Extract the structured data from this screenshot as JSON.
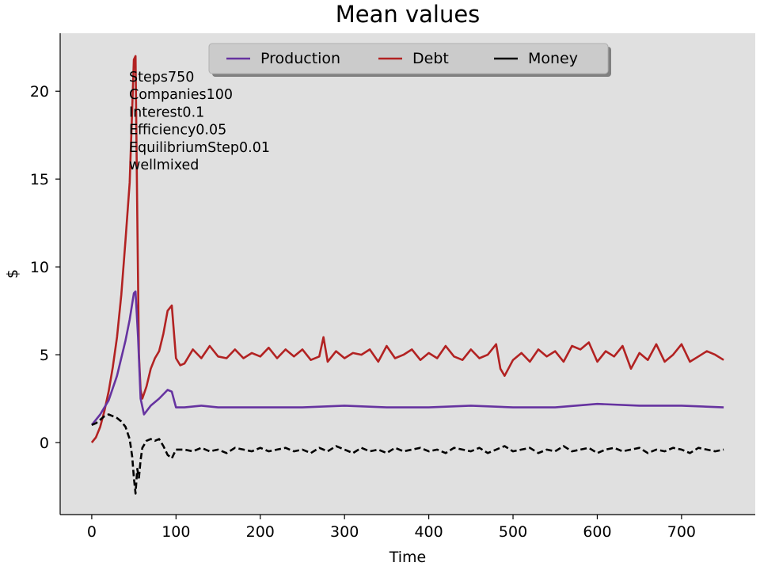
{
  "chart_data": {
    "type": "line",
    "title": "Mean values",
    "xlabel": "Time",
    "ylabel": "$",
    "xlim": [
      -37.5,
      787.5
    ],
    "ylim": [
      -4.1,
      23.3
    ],
    "xticks": [
      0,
      100,
      200,
      300,
      400,
      500,
      600,
      700
    ],
    "yticks": [
      0,
      5,
      10,
      15,
      20
    ],
    "grid": false,
    "background": "#e0e0e0",
    "legend": {
      "placement": "top-center",
      "columns": 3,
      "shadow": true
    },
    "annotation_lines": [
      "Steps750",
      "Companies100",
      "Interest0.1",
      "Efficiency0.05",
      "EquilibriumStep0.01",
      "wellmixed"
    ],
    "series": [
      {
        "name": "Production",
        "color": "#6633a0",
        "style": "solid",
        "x": [
          0,
          10,
          20,
          30,
          40,
          45,
          50,
          52,
          55,
          58,
          62,
          70,
          80,
          90,
          95,
          100,
          110,
          130,
          150,
          200,
          250,
          300,
          350,
          400,
          450,
          500,
          550,
          600,
          650,
          700,
          750
        ],
        "y": [
          1.0,
          1.6,
          2.4,
          3.8,
          5.8,
          7.0,
          8.5,
          8.6,
          6.0,
          2.5,
          1.6,
          2.1,
          2.5,
          3.0,
          2.9,
          2.0,
          2.0,
          2.1,
          2.0,
          2.0,
          2.0,
          2.1,
          2.0,
          2.0,
          2.1,
          2.0,
          2.0,
          2.2,
          2.1,
          2.1,
          2.0
        ]
      },
      {
        "name": "Debt",
        "color": "#b22222",
        "style": "solid",
        "x": [
          0,
          5,
          10,
          15,
          20,
          25,
          30,
          35,
          40,
          45,
          48,
          50,
          52,
          54,
          56,
          58,
          60,
          65,
          70,
          75,
          80,
          85,
          90,
          95,
          100,
          105,
          110,
          120,
          130,
          140,
          150,
          160,
          170,
          180,
          190,
          200,
          210,
          220,
          230,
          240,
          250,
          260,
          270,
          275,
          280,
          290,
          300,
          310,
          320,
          330,
          340,
          350,
          360,
          370,
          380,
          390,
          400,
          410,
          420,
          430,
          440,
          450,
          460,
          470,
          480,
          485,
          490,
          500,
          510,
          520,
          530,
          540,
          550,
          560,
          570,
          580,
          590,
          600,
          610,
          620,
          630,
          640,
          650,
          660,
          670,
          680,
          690,
          700,
          710,
          720,
          730,
          740,
          750
        ],
        "y": [
          0.0,
          0.3,
          0.9,
          1.8,
          2.9,
          4.3,
          6.0,
          8.4,
          11.5,
          14.8,
          19.0,
          21.8,
          22.0,
          13.0,
          5.0,
          3.0,
          2.5,
          3.2,
          4.2,
          4.8,
          5.2,
          6.2,
          7.5,
          7.8,
          4.8,
          4.4,
          4.5,
          5.3,
          4.8,
          5.5,
          4.9,
          4.8,
          5.3,
          4.8,
          5.1,
          4.9,
          5.4,
          4.8,
          5.3,
          4.9,
          5.3,
          4.7,
          4.9,
          6.0,
          4.6,
          5.2,
          4.8,
          5.1,
          5.0,
          5.3,
          4.6,
          5.5,
          4.8,
          5.0,
          5.3,
          4.7,
          5.1,
          4.8,
          5.5,
          4.9,
          4.7,
          5.3,
          4.8,
          5.0,
          5.6,
          4.2,
          3.8,
          4.7,
          5.1,
          4.6,
          5.3,
          4.9,
          5.2,
          4.6,
          5.5,
          5.3,
          5.7,
          4.6,
          5.2,
          4.9,
          5.5,
          4.2,
          5.1,
          4.7,
          5.6,
          4.6,
          5.0,
          5.6,
          4.6,
          4.9,
          5.2,
          5.0,
          4.7
        ]
      },
      {
        "name": "Money",
        "color": "#000000",
        "style": "dashed",
        "x": [
          0,
          5,
          10,
          15,
          20,
          25,
          30,
          35,
          40,
          45,
          48,
          50,
          52,
          54,
          56,
          58,
          60,
          65,
          70,
          75,
          80,
          85,
          90,
          95,
          100,
          110,
          120,
          130,
          140,
          150,
          160,
          170,
          180,
          190,
          200,
          210,
          220,
          230,
          240,
          250,
          260,
          270,
          280,
          290,
          300,
          310,
          320,
          330,
          340,
          350,
          360,
          370,
          380,
          390,
          400,
          410,
          420,
          430,
          440,
          450,
          460,
          470,
          480,
          490,
          500,
          510,
          520,
          530,
          540,
          550,
          560,
          570,
          580,
          590,
          600,
          610,
          620,
          630,
          640,
          650,
          660,
          670,
          680,
          690,
          700,
          710,
          720,
          730,
          740,
          750
        ],
        "y": [
          1.0,
          1.1,
          1.3,
          1.5,
          1.6,
          1.5,
          1.4,
          1.2,
          0.9,
          0.2,
          -0.8,
          -2.0,
          -2.9,
          -1.5,
          -2.0,
          -1.0,
          -0.3,
          0.1,
          0.2,
          0.1,
          0.2,
          -0.2,
          -0.7,
          -0.9,
          -0.4,
          -0.4,
          -0.5,
          -0.3,
          -0.5,
          -0.4,
          -0.6,
          -0.3,
          -0.4,
          -0.5,
          -0.3,
          -0.5,
          -0.4,
          -0.3,
          -0.5,
          -0.4,
          -0.6,
          -0.3,
          -0.5,
          -0.2,
          -0.4,
          -0.6,
          -0.3,
          -0.5,
          -0.4,
          -0.6,
          -0.3,
          -0.5,
          -0.4,
          -0.3,
          -0.5,
          -0.4,
          -0.6,
          -0.3,
          -0.4,
          -0.5,
          -0.3,
          -0.6,
          -0.4,
          -0.2,
          -0.5,
          -0.4,
          -0.3,
          -0.6,
          -0.4,
          -0.5,
          -0.2,
          -0.5,
          -0.4,
          -0.3,
          -0.6,
          -0.4,
          -0.3,
          -0.5,
          -0.4,
          -0.3,
          -0.6,
          -0.4,
          -0.5,
          -0.3,
          -0.4,
          -0.6,
          -0.3,
          -0.4,
          -0.5,
          -0.4
        ]
      }
    ]
  }
}
